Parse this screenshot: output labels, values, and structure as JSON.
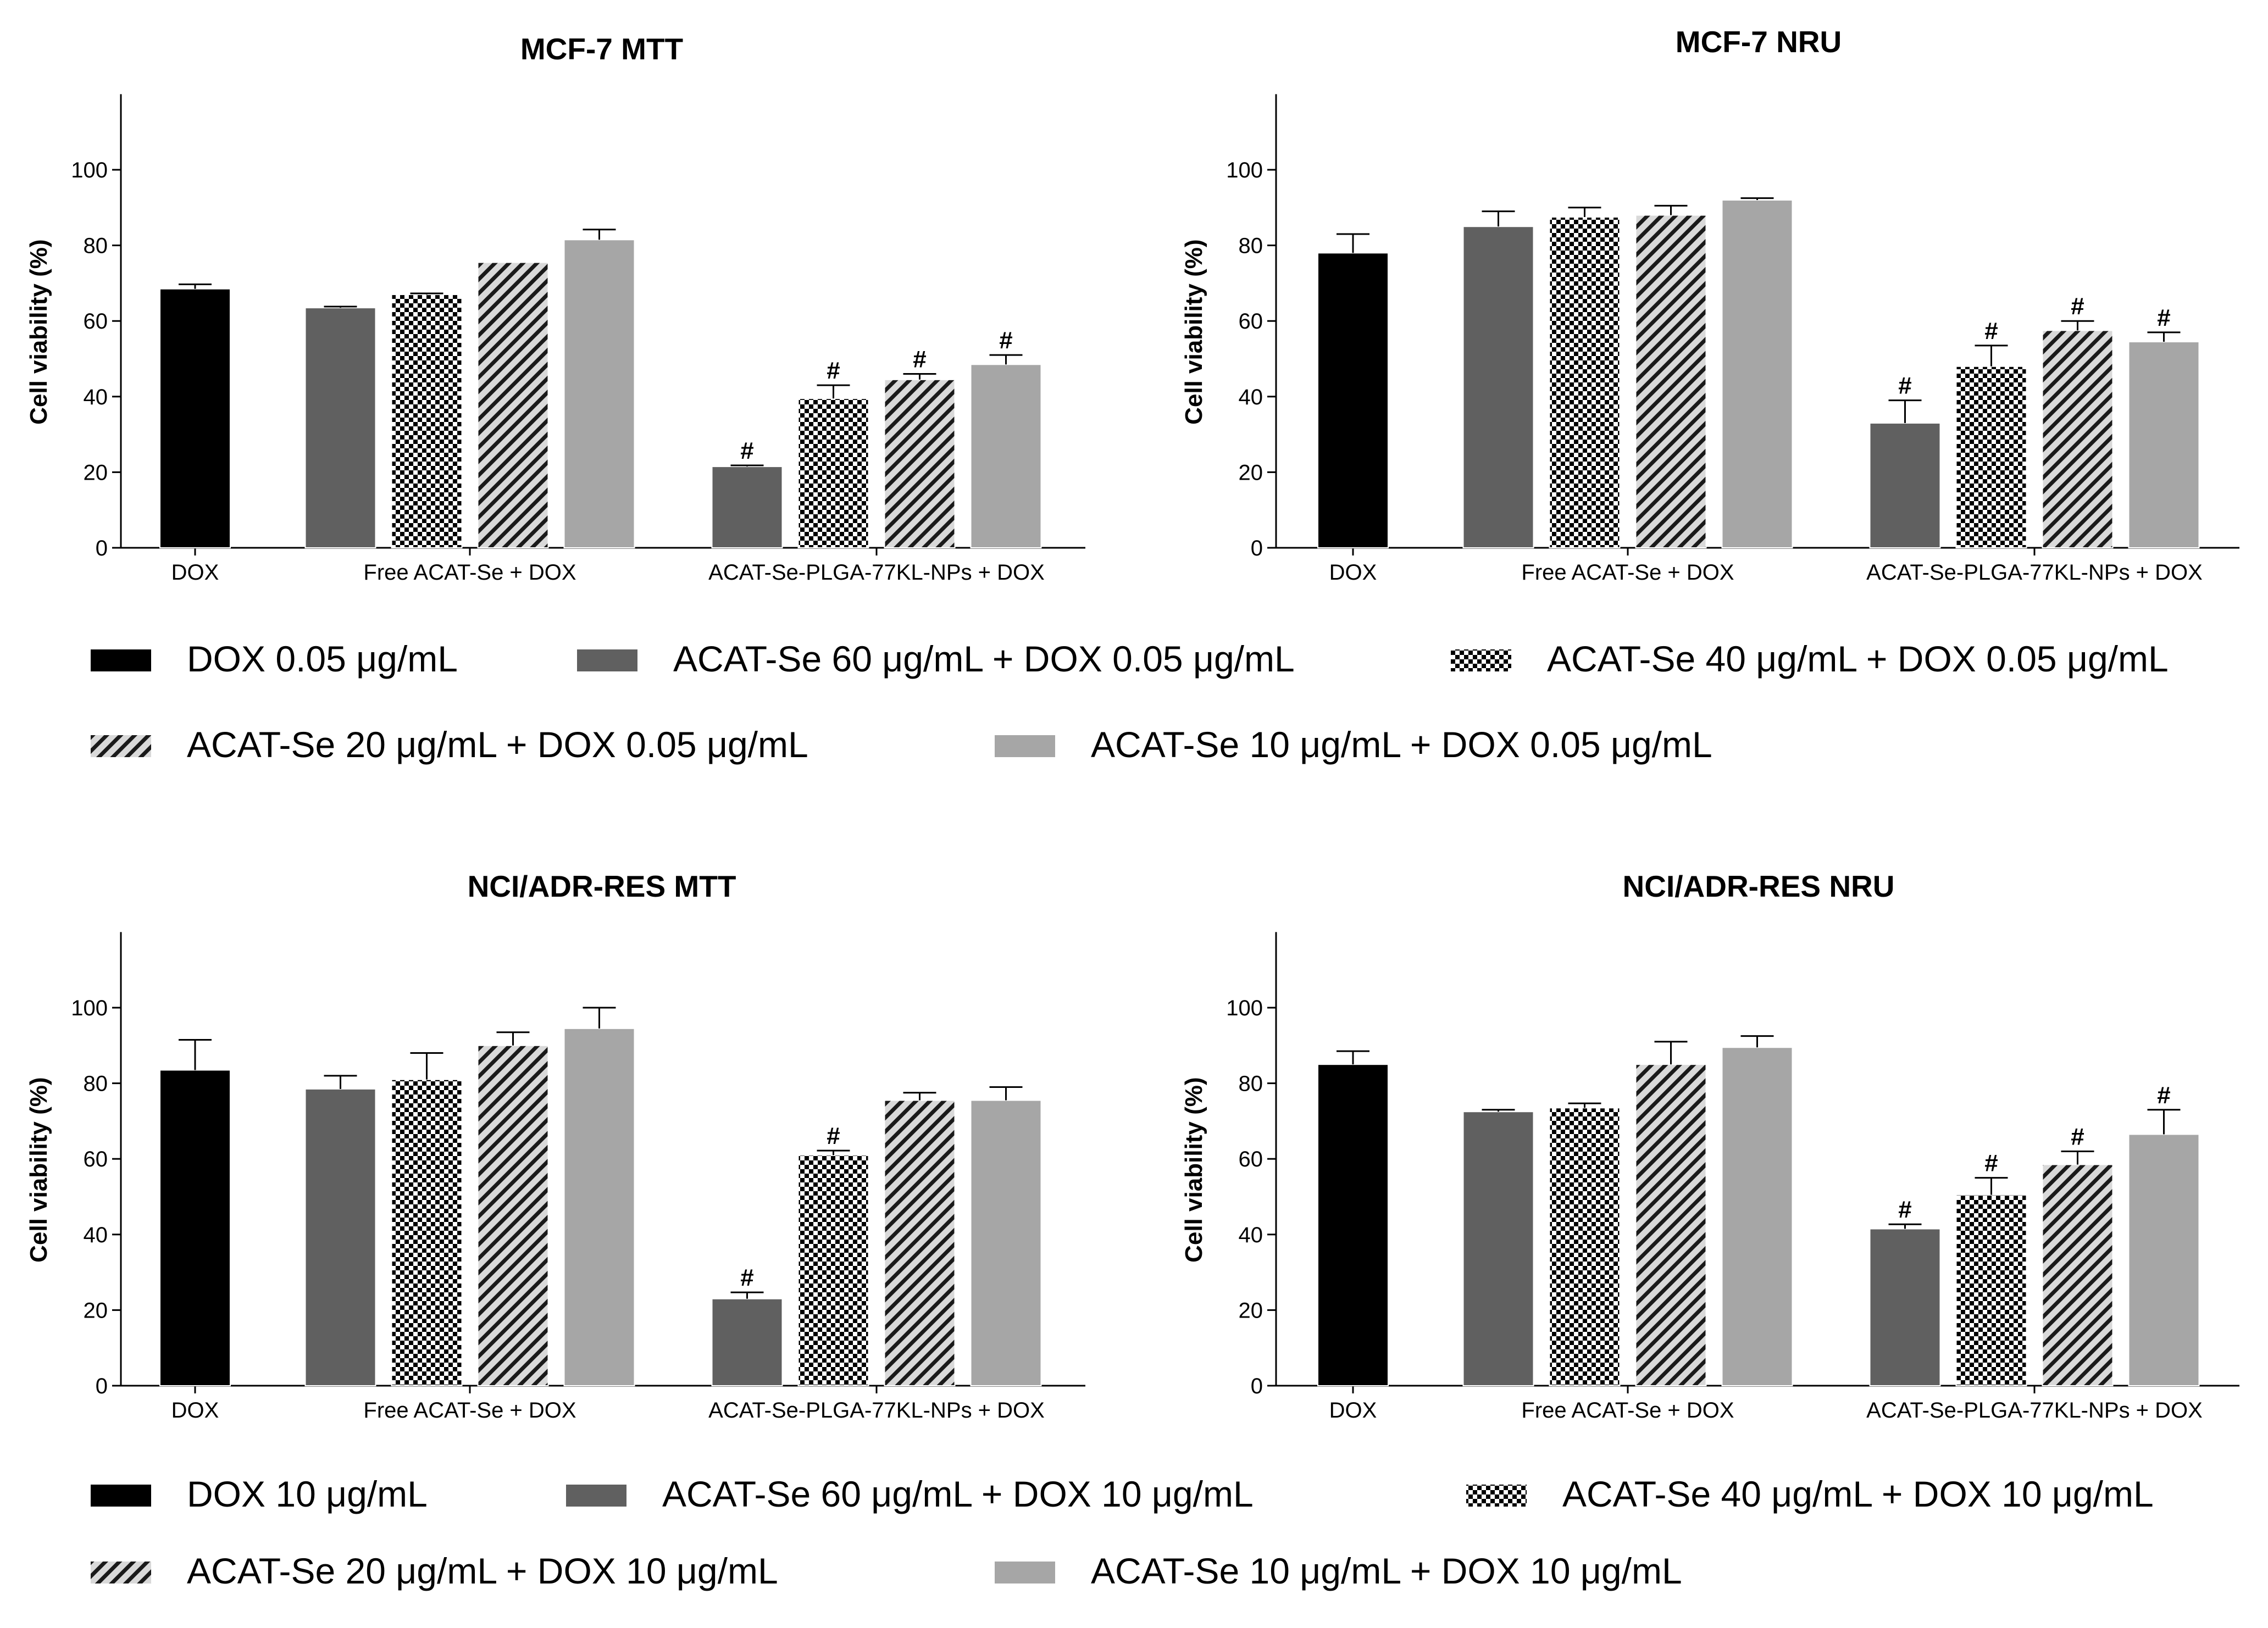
{
  "colors": {
    "black": "#000000",
    "dark": "#606060",
    "light": "#a6a6a6",
    "hatch_bg": "#d9d9d9"
  },
  "legends": [
    {
      "name": "legend-top",
      "items": [
        {
          "key": "s1",
          "label": "DOX 0.05 μg/mL"
        },
        {
          "key": "s2",
          "label": "ACAT-Se 60 μg/mL + DOX 0.05 μg/mL"
        },
        {
          "key": "s3",
          "label": "ACAT-Se 40 μg/mL + DOX 0.05 μg/mL"
        },
        {
          "key": "s4",
          "label": "ACAT-Se 20 μg/mL + DOX 0.05 μg/mL"
        },
        {
          "key": "s5",
          "label": "ACAT-Se 10 μg/mL + DOX 0.05 μg/mL"
        }
      ]
    },
    {
      "name": "legend-bottom",
      "items": [
        {
          "key": "s1",
          "label": "DOX 10 μg/mL"
        },
        {
          "key": "s2",
          "label": "ACAT-Se 60 μg/mL + DOX 10 μg/mL"
        },
        {
          "key": "s3",
          "label": "ACAT-Se 40 μg/mL + DOX 10 μg/mL"
        },
        {
          "key": "s4",
          "label": "ACAT-Se 20 μg/mL + DOX 10 μg/mL"
        },
        {
          "key": "s5",
          "label": "ACAT-Se 10 μg/mL + DOX 10 μg/mL"
        }
      ]
    }
  ],
  "chart_data": [
    {
      "type": "bar",
      "title": "MCF-7 MTT",
      "ylabel": "Cell viability (%)",
      "ylim": [
        0,
        120
      ],
      "yticks": [
        0,
        20,
        40,
        60,
        80,
        100
      ],
      "categories": [
        "DOX",
        "Free ACAT-Se + DOX",
        "ACAT-Se-PLGA-77KL-NPs  + DOX"
      ],
      "bars": [
        {
          "group": 0,
          "series": "s1",
          "value": 68.5,
          "error": 1.2,
          "sig": ""
        },
        {
          "group": 1,
          "series": "s2",
          "value": 63.5,
          "error": 0.3,
          "sig": ""
        },
        {
          "group": 1,
          "series": "s3",
          "value": 67,
          "error": 0.3,
          "sig": ""
        },
        {
          "group": 1,
          "series": "s4",
          "value": 75.5,
          "error": 0,
          "sig": ""
        },
        {
          "group": 1,
          "series": "s5",
          "value": 81.5,
          "error": 2.7,
          "sig": ""
        },
        {
          "group": 2,
          "series": "s2",
          "value": 21.5,
          "error": 0.3,
          "sig": "#"
        },
        {
          "group": 2,
          "series": "s3",
          "value": 39.5,
          "error": 3.5,
          "sig": "#"
        },
        {
          "group": 2,
          "series": "s4",
          "value": 44.5,
          "error": 1.5,
          "sig": "#"
        },
        {
          "group": 2,
          "series": "s5",
          "value": 48.5,
          "error": 2.5,
          "sig": "#"
        }
      ]
    },
    {
      "type": "bar",
      "title": "MCF-7 NRU",
      "ylabel": "Cell viability (%)",
      "ylim": [
        0,
        120
      ],
      "yticks": [
        0,
        20,
        40,
        60,
        80,
        100
      ],
      "categories": [
        "DOX",
        "Free ACAT-Se + DOX",
        "ACAT-Se-PLGA-77KL-NPs + DOX"
      ],
      "bars": [
        {
          "group": 0,
          "series": "s1",
          "value": 78,
          "error": 5,
          "sig": ""
        },
        {
          "group": 1,
          "series": "s2",
          "value": 85,
          "error": 4,
          "sig": ""
        },
        {
          "group": 1,
          "series": "s3",
          "value": 87.5,
          "error": 2.5,
          "sig": ""
        },
        {
          "group": 1,
          "series": "s4",
          "value": 88,
          "error": 2.5,
          "sig": ""
        },
        {
          "group": 1,
          "series": "s5",
          "value": 92,
          "error": 0.5,
          "sig": ""
        },
        {
          "group": 2,
          "series": "s2",
          "value": 33,
          "error": 6,
          "sig": "#"
        },
        {
          "group": 2,
          "series": "s3",
          "value": 48,
          "error": 5.5,
          "sig": "#"
        },
        {
          "group": 2,
          "series": "s4",
          "value": 57.5,
          "error": 2.5,
          "sig": "#"
        },
        {
          "group": 2,
          "series": "s5",
          "value": 54.5,
          "error": 2.5,
          "sig": "#"
        }
      ]
    },
    {
      "type": "bar",
      "title": "NCI/ADR-RES MTT",
      "ylabel": "Cell viability (%)",
      "ylim": [
        0,
        120
      ],
      "yticks": [
        0,
        20,
        40,
        60,
        80,
        100
      ],
      "categories": [
        "DOX",
        "Free ACAT-Se + DOX",
        "ACAT-Se-PLGA-77KL-NPs + DOX"
      ],
      "bars": [
        {
          "group": 0,
          "series": "s1",
          "value": 83.5,
          "error": 8,
          "sig": ""
        },
        {
          "group": 1,
          "series": "s2",
          "value": 78.5,
          "error": 3.5,
          "sig": ""
        },
        {
          "group": 1,
          "series": "s3",
          "value": 81,
          "error": 7,
          "sig": ""
        },
        {
          "group": 1,
          "series": "s4",
          "value": 90,
          "error": 3.5,
          "sig": ""
        },
        {
          "group": 1,
          "series": "s5",
          "value": 94.5,
          "error": 5.5,
          "sig": ""
        },
        {
          "group": 2,
          "series": "s2",
          "value": 23,
          "error": 1.7,
          "sig": "#"
        },
        {
          "group": 2,
          "series": "s3",
          "value": 61,
          "error": 1.2,
          "sig": "#"
        },
        {
          "group": 2,
          "series": "s4",
          "value": 75.5,
          "error": 2,
          "sig": ""
        },
        {
          "group": 2,
          "series": "s5",
          "value": 75.5,
          "error": 3.5,
          "sig": ""
        }
      ]
    },
    {
      "type": "bar",
      "title": "NCI/ADR-RES NRU",
      "ylabel": "Cell viability (%)",
      "ylim": [
        0,
        120
      ],
      "yticks": [
        0,
        20,
        40,
        60,
        80,
        100
      ],
      "categories": [
        "DOX",
        "Free ACAT-Se + DOX",
        "ACAT-Se-PLGA-77KL-NPs + DOX"
      ],
      "bars": [
        {
          "group": 0,
          "series": "s1",
          "value": 85,
          "error": 3.5,
          "sig": ""
        },
        {
          "group": 1,
          "series": "s2",
          "value": 72.5,
          "error": 0.5,
          "sig": ""
        },
        {
          "group": 1,
          "series": "s3",
          "value": 73.5,
          "error": 1.2,
          "sig": ""
        },
        {
          "group": 1,
          "series": "s4",
          "value": 85,
          "error": 6,
          "sig": ""
        },
        {
          "group": 1,
          "series": "s5",
          "value": 89.5,
          "error": 3,
          "sig": ""
        },
        {
          "group": 2,
          "series": "s2",
          "value": 41.5,
          "error": 1.2,
          "sig": "#"
        },
        {
          "group": 2,
          "series": "s3",
          "value": 50.5,
          "error": 4.5,
          "sig": "#"
        },
        {
          "group": 2,
          "series": "s4",
          "value": 58.5,
          "error": 3.5,
          "sig": "#"
        },
        {
          "group": 2,
          "series": "s5",
          "value": 66.5,
          "error": 6.5,
          "sig": "#"
        }
      ]
    }
  ]
}
